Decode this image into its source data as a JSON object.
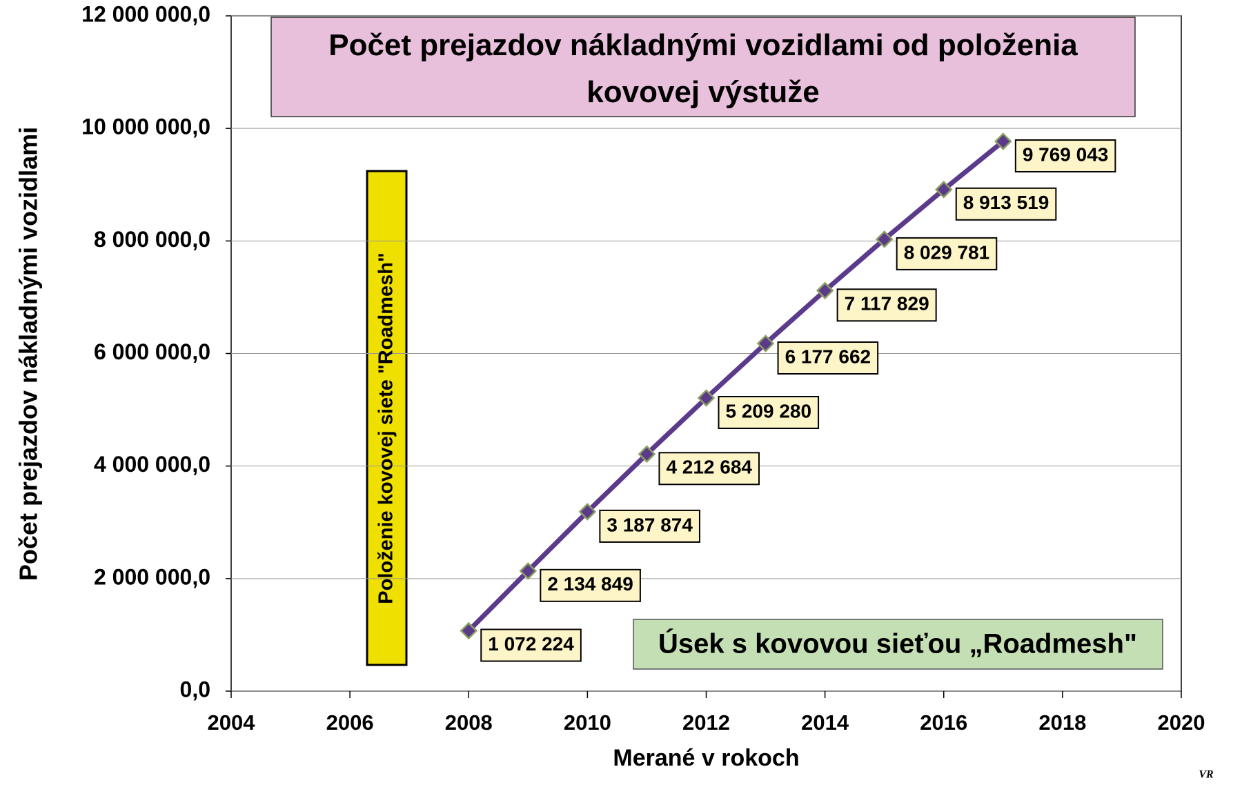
{
  "chart_data": {
    "type": "line",
    "title": "Počet prejazdov nákladnými vozidlami od položenia kovovej výstuže",
    "x_label": "Merané v rokoch",
    "y_label": "Počet prejazdov nákladnými  vozidlami",
    "annotations": [
      "Položenie kovovej siete \"Roadmesh\"",
      "Úsek s kovovou sieťou „Roadmesh\"",
      "VR"
    ],
    "x": [
      2008,
      2009,
      2010,
      2011,
      2012,
      2013,
      2014,
      2015,
      2016,
      2017
    ],
    "series": [
      {
        "name": "Počet prejazdov",
        "color": "#5b3a8c",
        "values": [
          1072224,
          2134849,
          3187874,
          4212684,
          5209280,
          6177662,
          7117829,
          8029781,
          8913519,
          9769043
        ],
        "value_labels": [
          "1 072 224",
          "2 134 849",
          "3 187 874",
          "4 212 684",
          "5 209 280",
          "6 177 662",
          "7 117 829",
          "8 029 781",
          "8 913 519",
          "9 769 043"
        ]
      }
    ],
    "xlim": [
      2004,
      2020
    ],
    "xticks": [
      2004,
      2006,
      2008,
      2010,
      2012,
      2014,
      2016,
      2018,
      2020
    ],
    "ylim": [
      0,
      12000000
    ],
    "yticks": [
      {
        "value": 0,
        "label": "0,0"
      },
      {
        "value": 2000000,
        "label": "2 000 000,0"
      },
      {
        "value": 4000000,
        "label": "4 000 000,0"
      },
      {
        "value": 6000000,
        "label": "6 000 000,0"
      },
      {
        "value": 8000000,
        "label": "8 000 000,0"
      },
      {
        "value": 10000000,
        "label": "10 000 000,0"
      },
      {
        "value": 12000000,
        "label": "12 000 000,0"
      }
    ],
    "grid": true
  }
}
